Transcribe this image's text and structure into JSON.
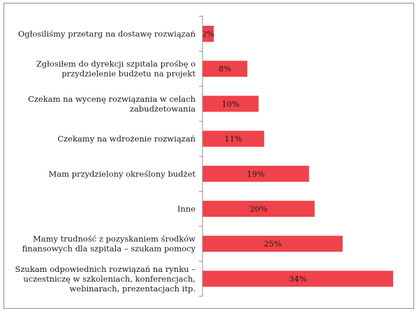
{
  "chart_data": {
    "type": "bar",
    "orientation": "horizontal",
    "title": "",
    "xlabel": "",
    "ylabel": "",
    "xlim": [
      0,
      34
    ],
    "bar_color": "#f0424a",
    "categories": [
      [
        "Ogłosiliśmy przetarg na dostawę rozwiązań"
      ],
      [
        "Zgłosiłem do dyrekcji szpitala prośbę o",
        "przydzielenie budżetu na projekt"
      ],
      [
        "Czekam na wycenę rozwiązania w celach",
        "zabudżetowania"
      ],
      [
        "Czekamy na wdrożenie rozwiązań"
      ],
      [
        "Mam przydzielony określony budżet"
      ],
      [
        "Inne"
      ],
      [
        "Mamy trudność z pozyskaniem środków",
        "finansowych dla szpitala – szukam pomocy"
      ],
      [
        "Szukam odpowiednich rozwiązań na rynku –",
        "uczestniczę w szkoleniach, konferencjach,",
        "webinarach, prezentacjach itp."
      ]
    ],
    "values": [
      2,
      8,
      10,
      11,
      19,
      20,
      25,
      34
    ],
    "data_labels": [
      "2%",
      "8%",
      "10%",
      "11%",
      "19%",
      "20%",
      "25%",
      "34%"
    ]
  }
}
